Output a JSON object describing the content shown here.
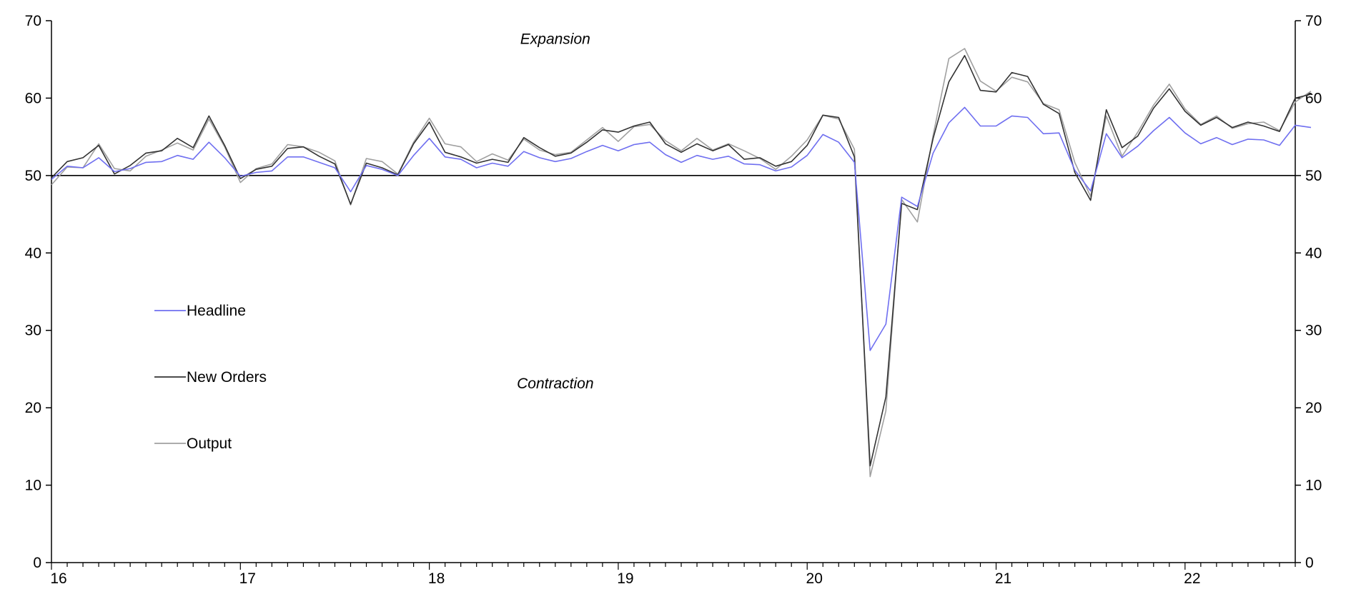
{
  "chart_data": {
    "type": "line",
    "title": "",
    "xlabel": "",
    "ylabel": "",
    "ylim": [
      0,
      70
    ],
    "y_ticks": [
      0,
      10,
      20,
      30,
      40,
      50,
      60,
      70
    ],
    "y_axis_right": true,
    "reference_line": 50,
    "grid": false,
    "legend_placement": "left-middle",
    "x_start": "2016-01",
    "x_end": "2022-08",
    "x_ticks": [
      {
        "date": "2016-01",
        "label": "16"
      },
      {
        "date": "2017-01",
        "label": "17"
      },
      {
        "date": "2018-01",
        "label": "18"
      },
      {
        "date": "2019-01",
        "label": "19"
      },
      {
        "date": "2020-01",
        "label": "20"
      },
      {
        "date": "2021-01",
        "label": "21"
      },
      {
        "date": "2022-01",
        "label": "22"
      }
    ],
    "annotations": [
      {
        "text": "Expansion",
        "date": "2018-09",
        "y": 67
      },
      {
        "text": "Contraction",
        "date": "2018-09",
        "y": 22.5
      }
    ],
    "series": [
      {
        "name": "Headline",
        "color": "#6f6ff0",
        "values": [
          49.5,
          51.2,
          51.0,
          52.3,
          50.5,
          50.9,
          51.7,
          51.8,
          52.6,
          52.1,
          54.3,
          52.3,
          49.9,
          50.4,
          50.6,
          52.4,
          52.4,
          51.7,
          51.0,
          47.9,
          51.3,
          50.8,
          50.0,
          52.6,
          54.8,
          52.4,
          52.1,
          51.0,
          51.6,
          51.2,
          53.1,
          52.3,
          51.8,
          52.2,
          53.1,
          53.9,
          53.2,
          54.0,
          54.3,
          52.7,
          51.7,
          52.6,
          52.1,
          52.5,
          51.5,
          51.4,
          50.6,
          51.1,
          52.6,
          55.3,
          54.3,
          51.7,
          27.4,
          30.8,
          47.2,
          46.0,
          52.9,
          56.8,
          58.8,
          56.4,
          56.4,
          57.7,
          57.5,
          55.4,
          55.5,
          50.7,
          48.0,
          55.4,
          52.3,
          53.8,
          55.8,
          57.5,
          55.5,
          54.1,
          54.9,
          54.0,
          54.7,
          54.6,
          53.9,
          56.5,
          56.2
        ],
        "hidden_values_note": ""
      },
      {
        "name": "New Orders",
        "color": "#333333",
        "values": [
          49.7,
          51.8,
          52.3,
          53.9,
          50.2,
          51.3,
          52.9,
          53.2,
          54.8,
          53.6,
          57.7,
          53.9,
          49.6,
          50.8,
          51.2,
          53.5,
          53.7,
          52.5,
          51.5,
          46.3,
          51.6,
          51.0,
          50.1,
          54.1,
          56.9,
          53.0,
          52.4,
          51.6,
          52.1,
          51.7,
          54.9,
          53.6,
          52.5,
          52.9,
          54.3,
          55.9,
          55.6,
          56.4,
          56.9,
          54.1,
          53.0,
          54.1,
          53.2,
          54.0,
          52.1,
          52.3,
          51.2,
          51.8,
          53.9,
          57.8,
          57.5,
          52.4,
          12.5,
          21.4,
          46.4,
          45.6,
          54.8,
          62.1,
          65.5,
          61.0,
          60.8,
          63.3,
          62.8,
          59.2,
          58.0,
          50.4,
          46.8,
          58.5,
          53.6,
          55.1,
          58.7,
          61.2,
          58.3,
          56.5,
          57.5,
          56.2,
          56.9,
          56.4,
          55.7,
          60.0,
          60.5
        ]
      },
      {
        "name": "Output",
        "color": "#a0a0a0",
        "values": [
          48.8,
          51.1,
          51.0,
          54.1,
          50.9,
          50.6,
          52.5,
          53.3,
          54.2,
          53.3,
          57.3,
          53.7,
          49.1,
          50.9,
          51.5,
          54.0,
          53.7,
          53.0,
          51.9,
          46.2,
          52.2,
          51.8,
          50.2,
          54.3,
          57.4,
          54.1,
          53.7,
          51.8,
          52.8,
          52.0,
          54.7,
          53.3,
          52.7,
          53.0,
          54.6,
          56.2,
          54.4,
          56.3,
          56.6,
          54.5,
          53.2,
          54.8,
          53.3,
          54.1,
          53.2,
          52.2,
          50.8,
          52.5,
          54.6,
          57.8,
          57.3,
          53.4,
          11.1,
          19.6,
          46.9,
          44.0,
          55.2,
          65.1,
          66.4,
          62.2,
          60.9,
          62.7,
          62.1,
          59.3,
          58.5,
          51.7,
          47.3,
          57.7,
          52.5,
          55.6,
          59.1,
          61.8,
          58.6,
          56.6,
          57.7,
          56.1,
          56.7,
          56.9,
          55.8,
          59.5,
          60.9
        ]
      }
    ]
  }
}
